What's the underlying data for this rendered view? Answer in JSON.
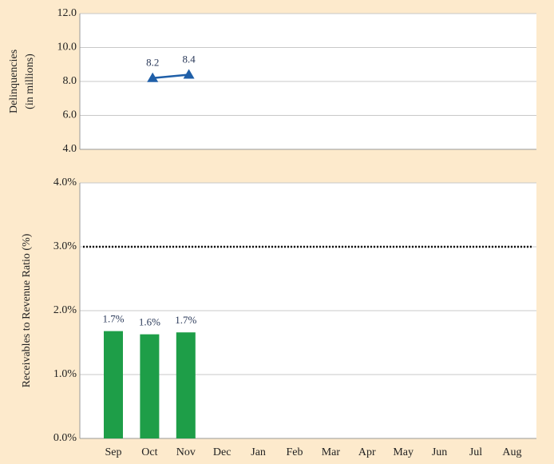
{
  "chart_data": [
    {
      "type": "line",
      "ylabel": [
        "Delinquencies",
        "(in millions)"
      ],
      "values": [
        8.2,
        8.4,
        null,
        null,
        null,
        null,
        null,
        null,
        null,
        null,
        null,
        null
      ],
      "color": "#1f5fa8",
      "marker": "triangle",
      "ylim": [
        4,
        12
      ],
      "yticks": [
        {
          "value": 4,
          "label": "4.0"
        },
        {
          "value": 6,
          "label": "6.0"
        },
        {
          "value": 8,
          "label": "8.0"
        },
        {
          "value": 10,
          "label": "10.0"
        },
        {
          "value": 12,
          "label": "12.0"
        }
      ],
      "grid": true
    },
    {
      "type": "bar",
      "ylabel": "Receivables to Revenue Ratio (%)",
      "categories": [
        "Sep",
        "Oct",
        "Nov",
        "Dec",
        "Jan",
        "Feb",
        "Mar",
        "Apr",
        "May",
        "Jun",
        "Jul",
        "Aug"
      ],
      "values": [
        1.68,
        1.63,
        1.66,
        null,
        null,
        null,
        null,
        null,
        null,
        null,
        null,
        null
      ],
      "value_labels": [
        "1.7%",
        "1.6%",
        "1.7%",
        null,
        null,
        null,
        null,
        null,
        null,
        null,
        null,
        null
      ],
      "color": "#1e9e48",
      "reference_line": 3,
      "ylim": [
        0,
        4
      ],
      "yticks": [
        {
          "value": 0,
          "label": "0.0%"
        },
        {
          "value": 1,
          "label": "1.0%"
        },
        {
          "value": 2,
          "label": "2.0%"
        },
        {
          "value": 3,
          "label": "3.0%"
        },
        {
          "value": 4,
          "label": "4.0%"
        }
      ],
      "grid": true
    }
  ]
}
